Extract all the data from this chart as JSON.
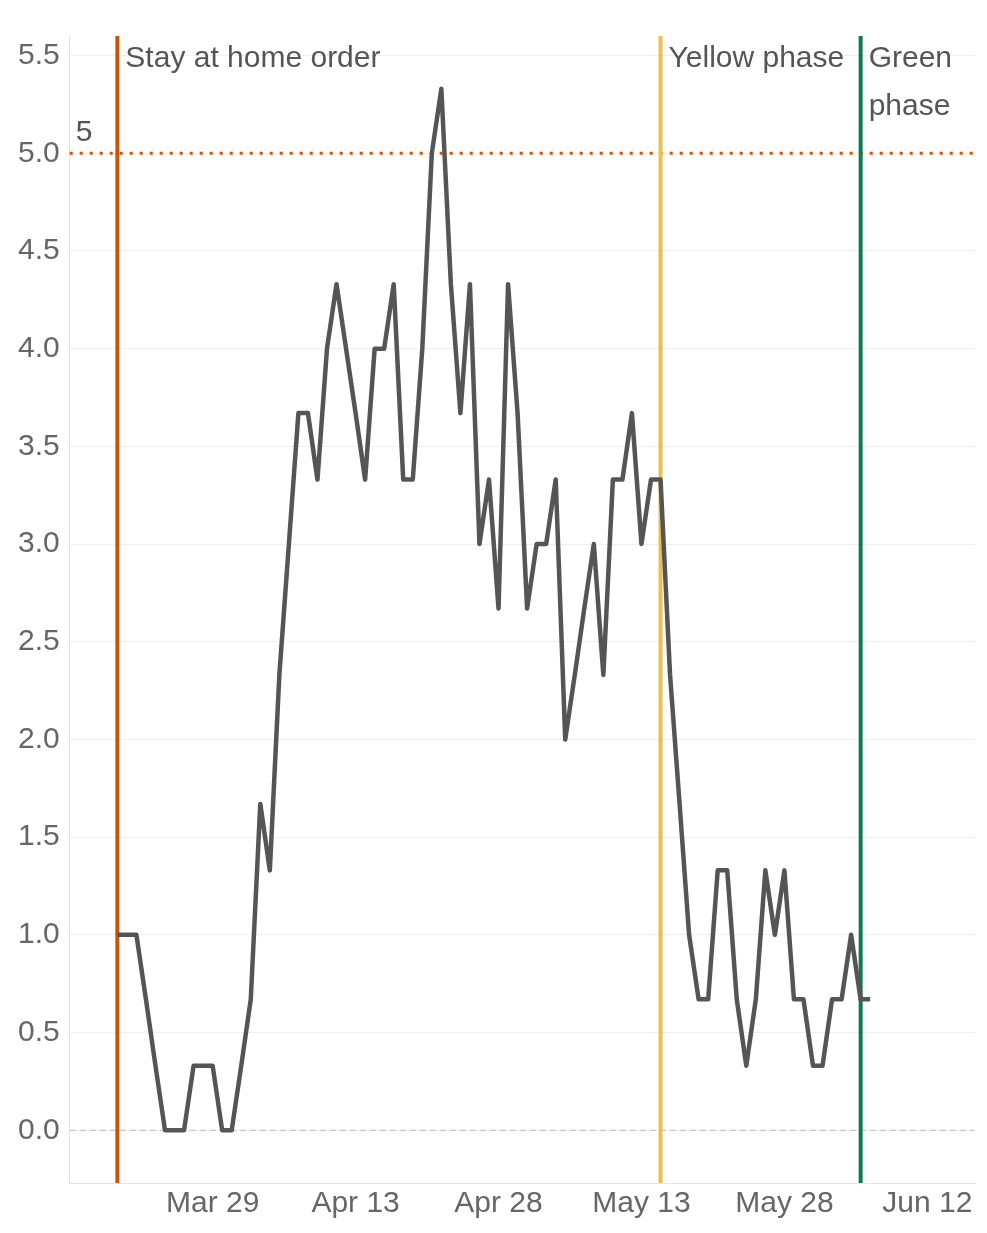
{
  "chart_data": {
    "type": "line",
    "color": "#555555",
    "line_style": "solid",
    "marker": "none",
    "grid": "y",
    "x": [
      "--03-19",
      "--03-20",
      "--03-21",
      "--03-22",
      "--03-23",
      "--03-24",
      "--03-25",
      "--03-26",
      "--03-27",
      "--03-28",
      "--03-29",
      "--03-30",
      "--03-31",
      "--04-01",
      "--04-02",
      "--04-03",
      "--04-04",
      "--04-05",
      "--04-06",
      "--04-07",
      "--04-08",
      "--04-09",
      "--04-10",
      "--04-11",
      "--04-12",
      "--04-13",
      "--04-14",
      "--04-15",
      "--04-16",
      "--04-17",
      "--04-18",
      "--04-19",
      "--04-20",
      "--04-21",
      "--04-22",
      "--04-23",
      "--04-24",
      "--04-25",
      "--04-26",
      "--04-27",
      "--04-28",
      "--04-29",
      "--04-30",
      "--05-01",
      "--05-02",
      "--05-03",
      "--05-04",
      "--05-05",
      "--05-06",
      "--05-07",
      "--05-08",
      "--05-09",
      "--05-10",
      "--05-11",
      "--05-12",
      "--05-13",
      "--05-14",
      "--05-15",
      "--05-16",
      "--05-17",
      "--05-18",
      "--05-19",
      "--05-20",
      "--05-21",
      "--05-22",
      "--05-23",
      "--05-24",
      "--05-25",
      "--05-26",
      "--05-27",
      "--05-28",
      "--05-29",
      "--05-30",
      "--05-31",
      "--06-01",
      "--06-02",
      "--06-03",
      "--06-04",
      "--06-05",
      "--06-06"
    ],
    "values": [
      1.0,
      1.0,
      1.0,
      0.67,
      0.33,
      0,
      0,
      0,
      0.33,
      0.33,
      0.33,
      0,
      0,
      0.33,
      0.67,
      1.67,
      1.33,
      2.33,
      3.0,
      3.67,
      3.67,
      3.33,
      4.0,
      4.33,
      4.0,
      3.67,
      3.33,
      4.0,
      4.0,
      4.33,
      3.33,
      3.33,
      4.0,
      5.0,
      5.33,
      4.33,
      3.67,
      4.33,
      3.0,
      3.33,
      2.67,
      4.33,
      3.67,
      2.67,
      3.0,
      3.0,
      3.33,
      2.0,
      2.33,
      2.67,
      3.0,
      2.33,
      3.33,
      3.33,
      3.67,
      3.0,
      3.33,
      3.33,
      2.33,
      1.67,
      1.0,
      0.67,
      0.67,
      1.33,
      1.33,
      0.67,
      0.33,
      0.67,
      1.33,
      1.0,
      1.33,
      0.67,
      0.67,
      0.33,
      0.33,
      0.67,
      0.67,
      1.0,
      0.67,
      0.67
    ],
    "xlim": [
      "--03-14",
      "--06-17"
    ],
    "xticks": [
      {
        "value": "--03-29",
        "label": "Mar 29"
      },
      {
        "value": "--04-13",
        "label": "Apr 13"
      },
      {
        "value": "--04-28",
        "label": "Apr 28"
      },
      {
        "value": "--05-13",
        "label": "May 13"
      },
      {
        "value": "--05-28",
        "label": "May 28"
      },
      {
        "value": "--06-12",
        "label": "Jun 12"
      }
    ],
    "ylim": [
      -0.27,
      5.6
    ],
    "yticks": [
      {
        "value": 0,
        "label": "0.0"
      },
      {
        "value": 0.5,
        "label": "0.5"
      },
      {
        "value": 1,
        "label": "1.0"
      },
      {
        "value": 1.5,
        "label": "1.5"
      },
      {
        "value": 2,
        "label": "2.0"
      },
      {
        "value": 2.5,
        "label": "2.5"
      },
      {
        "value": 3,
        "label": "3.0"
      },
      {
        "value": 3.5,
        "label": "3.5"
      },
      {
        "value": 4,
        "label": "4.0"
      },
      {
        "value": 4.5,
        "label": "4.5"
      },
      {
        "value": 5,
        "label": "5.0"
      },
      {
        "value": 5.5,
        "label": "5.5"
      }
    ],
    "ref_lines": [
      {
        "axis": "y",
        "value": 0,
        "color": "#bbbbbb",
        "line_style": "dashed"
      },
      {
        "axis": "y",
        "value": 5,
        "label": "5",
        "color": "#d35400",
        "line_style": "dotted"
      },
      {
        "axis": "x",
        "value": "--03-19",
        "label": "Stay at home order",
        "color": "#c8530a",
        "line_style": "solid"
      },
      {
        "axis": "x",
        "value": "--05-15",
        "label": "Yellow phase",
        "color": "#ecc04e",
        "line_style": "solid"
      },
      {
        "axis": "x",
        "value": "--06-05",
        "label": "Green phase",
        "color": "#0e7a4f",
        "line_style": "solid"
      }
    ]
  }
}
